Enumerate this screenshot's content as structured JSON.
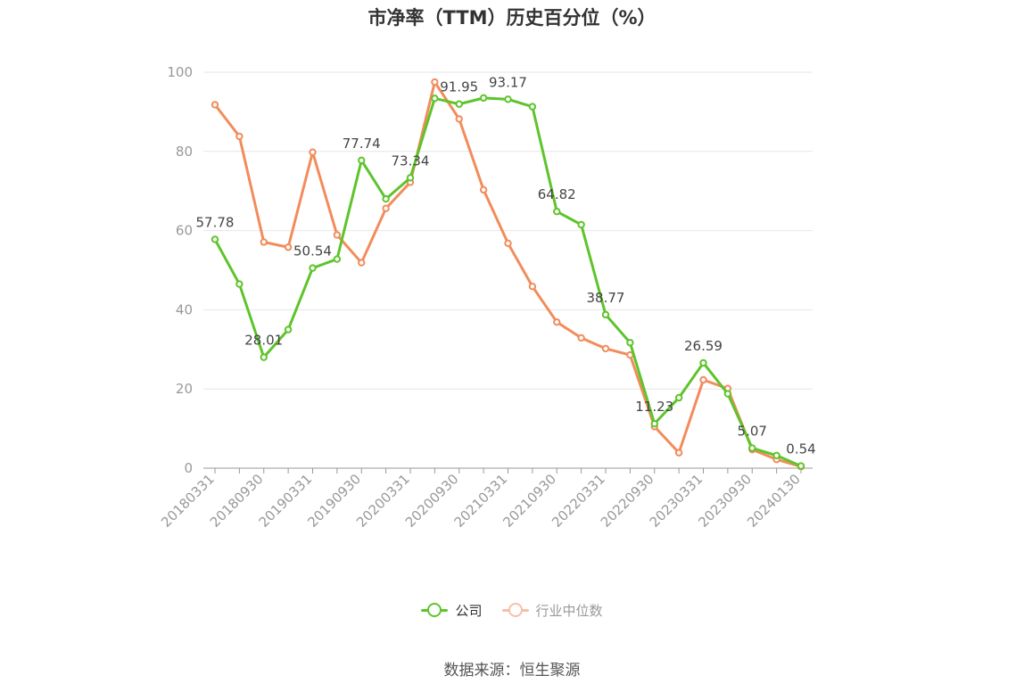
{
  "title": "市净率（TTM）历史百分位（%）",
  "source": "数据来源：恒生聚源",
  "legend": [
    {
      "name": "公司",
      "color": "#5ec42b",
      "active": true
    },
    {
      "name": "行业中位数",
      "color": "#f28c5b",
      "active": false
    }
  ],
  "chart_data": {
    "type": "line",
    "title": "市净率（TTM）历史百分位（%）",
    "xlabel": "",
    "ylabel": "",
    "ylim": [
      0,
      100
    ],
    "yticks": [
      0,
      20,
      40,
      60,
      80,
      100
    ],
    "grid": true,
    "legend_position": "bottom-center",
    "x": [
      "20180331",
      "20180630",
      "20180930",
      "20181231",
      "20190331",
      "20190630",
      "20190930",
      "20191231",
      "20200331",
      "20200630",
      "20200930",
      "20201231",
      "20210331",
      "20210630",
      "20210930",
      "20211231",
      "20220331",
      "20220630",
      "20220930",
      "20221231",
      "20230331",
      "20230630",
      "20230930",
      "20231231",
      "20240130"
    ],
    "xtick_labels": [
      "20180331",
      "20180930",
      "20190331",
      "20190930",
      "20200331",
      "20200930",
      "20210331",
      "20210930",
      "20220331",
      "20220930",
      "20230331",
      "20230930",
      "20240130"
    ],
    "series": [
      {
        "name": "公司",
        "color": "#5ec42b",
        "values": [
          57.78,
          46.5,
          28.01,
          35.0,
          50.54,
          52.8,
          77.74,
          68.0,
          73.34,
          93.4,
          91.95,
          93.5,
          93.17,
          91.3,
          64.82,
          61.5,
          38.77,
          31.7,
          11.23,
          17.8,
          26.59,
          18.8,
          5.07,
          3.2,
          0.54
        ],
        "labels": {
          "0": "57.78",
          "2": "28.01",
          "4": "50.54",
          "6": "77.74",
          "8": "73.34",
          "10": "91.95",
          "12": "93.17",
          "14": "64.82",
          "16": "38.77",
          "18": "11.23",
          "20": "26.59",
          "22": "5.07",
          "24": "0.54"
        }
      },
      {
        "name": "行业中位数",
        "color": "#f28c5b",
        "values": [
          91.8,
          83.8,
          57.1,
          55.8,
          79.8,
          58.9,
          51.9,
          65.6,
          72.2,
          97.5,
          88.2,
          70.3,
          56.8,
          45.9,
          36.9,
          32.9,
          30.2,
          28.6,
          10.5,
          3.9,
          22.3,
          20.1,
          4.7,
          2.2,
          0.4
        ]
      }
    ]
  }
}
